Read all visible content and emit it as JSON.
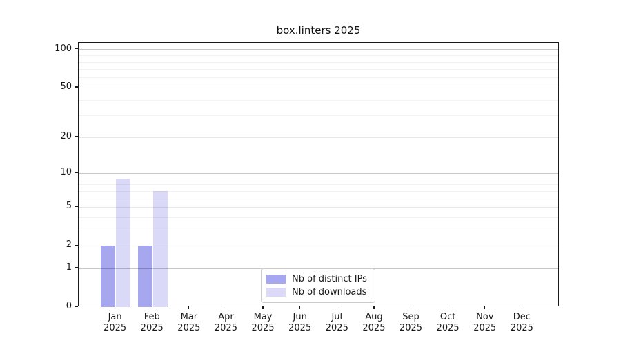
{
  "title": "box.linters 2025",
  "chart_data": {
    "type": "bar",
    "title": "box.linters 2025",
    "categories": [
      "Jan",
      "Feb",
      "Mar",
      "Apr",
      "May",
      "Jun",
      "Jul",
      "Aug",
      "Sep",
      "Oct",
      "Nov",
      "Dec"
    ],
    "category_year": "2025",
    "series": [
      {
        "name": "Nb of distinct IPs",
        "color": "#a7a7f0",
        "values": [
          2,
          2,
          0,
          0,
          0,
          0,
          0,
          0,
          0,
          0,
          0,
          0
        ]
      },
      {
        "name": "Nb of downloads",
        "color": "#dadaf8",
        "values": [
          9,
          7,
          0,
          0,
          0,
          0,
          0,
          0,
          0,
          0,
          0,
          0
        ]
      }
    ],
    "yscale": "log1p",
    "ylim": [
      0,
      100
    ],
    "y_ticks": [
      0,
      1,
      2,
      5,
      10,
      20,
      50,
      100
    ],
    "y_decade_ticks": [
      1,
      10,
      100
    ],
    "y_minor_ticks": [
      3,
      4,
      6,
      7,
      8,
      9,
      30,
      40,
      60,
      70,
      80,
      90
    ],
    "grid": true,
    "legend_position": "lower center"
  },
  "colors": {
    "background": "#ffffff",
    "axis": "#1a1a1a",
    "grid_decade": "#00000038",
    "grid_labeled": "#00000018",
    "grid_minor": "#0000000d",
    "legend_border": "#cccccc"
  }
}
